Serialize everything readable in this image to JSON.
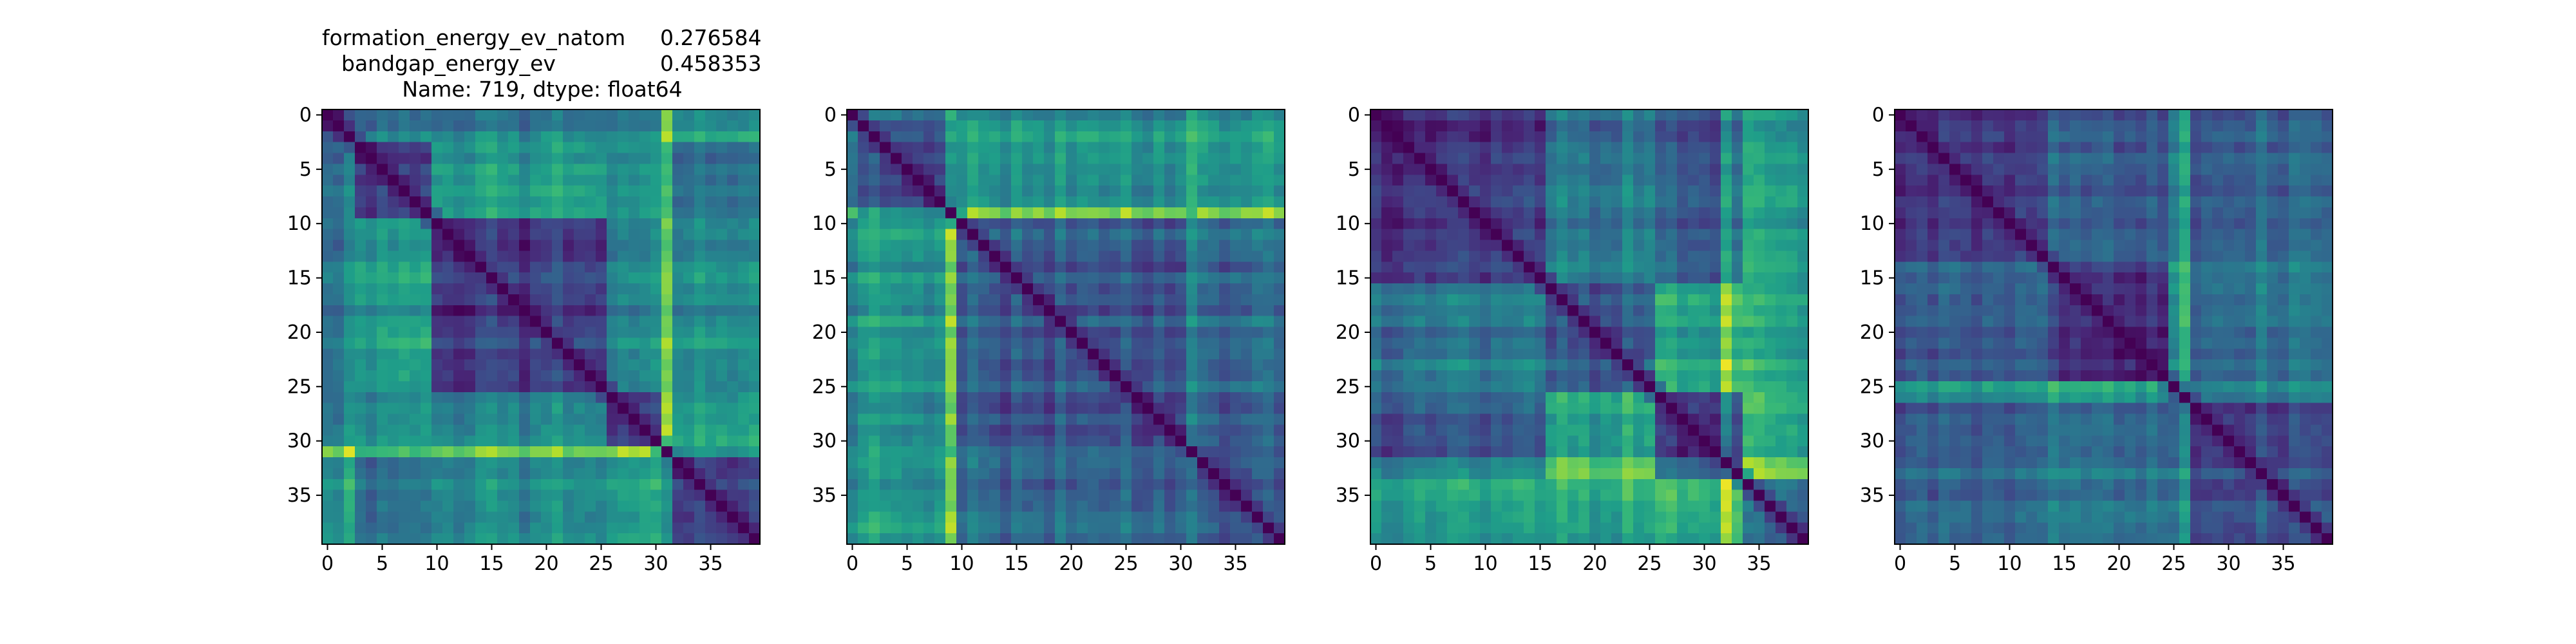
{
  "figure": {
    "title_lines": [
      {
        "name": "formation_energy_ev_natom",
        "value": "0.276584"
      },
      {
        "name": "bandgap_energy_ev",
        "value": "0.458353"
      },
      {
        "name": "Name: 719, dtype: float64",
        "value": ""
      }
    ]
  },
  "chart_data": [
    {
      "type": "heatmap",
      "size": 40,
      "colormap": "viridis",
      "xticks": [
        0,
        5,
        10,
        15,
        20,
        25,
        30,
        35
      ],
      "yticks": [
        0,
        5,
        10,
        15,
        20,
        25,
        30,
        35
      ],
      "blocks": [
        [
          0,
          2
        ],
        [
          3,
          9
        ],
        [
          10,
          25
        ],
        [
          26,
          30
        ],
        [
          31,
          39
        ]
      ],
      "seed": 11,
      "bright_rows": [
        31
      ],
      "bright_cols": [
        31
      ]
    },
    {
      "type": "heatmap",
      "size": 40,
      "colormap": "viridis",
      "xticks": [
        0,
        5,
        10,
        15,
        20,
        25,
        30,
        35
      ],
      "yticks": [
        0,
        5,
        10,
        15,
        20,
        25,
        30,
        35
      ],
      "blocks": [
        [
          0,
          0
        ],
        [
          1,
          9
        ],
        [
          10,
          30
        ],
        [
          31,
          39
        ]
      ],
      "seed": 23,
      "bright_rows": [
        9
      ],
      "bright_cols": [
        9,
        31
      ]
    },
    {
      "type": "heatmap",
      "size": 40,
      "colormap": "viridis",
      "xticks": [
        0,
        5,
        10,
        15,
        20,
        25,
        30,
        35
      ],
      "yticks": [
        0,
        5,
        10,
        15,
        20,
        25,
        30,
        35
      ],
      "blocks": [
        [
          0,
          15
        ],
        [
          16,
          25
        ],
        [
          26,
          33
        ],
        [
          34,
          39
        ]
      ],
      "seed": 37,
      "bright_rows": [
        33
      ],
      "bright_cols": [
        32
      ]
    },
    {
      "type": "heatmap",
      "size": 40,
      "colormap": "viridis",
      "xticks": [
        0,
        5,
        10,
        15,
        20,
        25,
        30,
        35
      ],
      "yticks": [
        0,
        5,
        10,
        15,
        20,
        25,
        30,
        35
      ],
      "blocks": [
        [
          0,
          13
        ],
        [
          14,
          24
        ],
        [
          25,
          39
        ]
      ],
      "seed": 53,
      "bright_rows": [
        25
      ],
      "bright_cols": [
        26
      ]
    }
  ]
}
